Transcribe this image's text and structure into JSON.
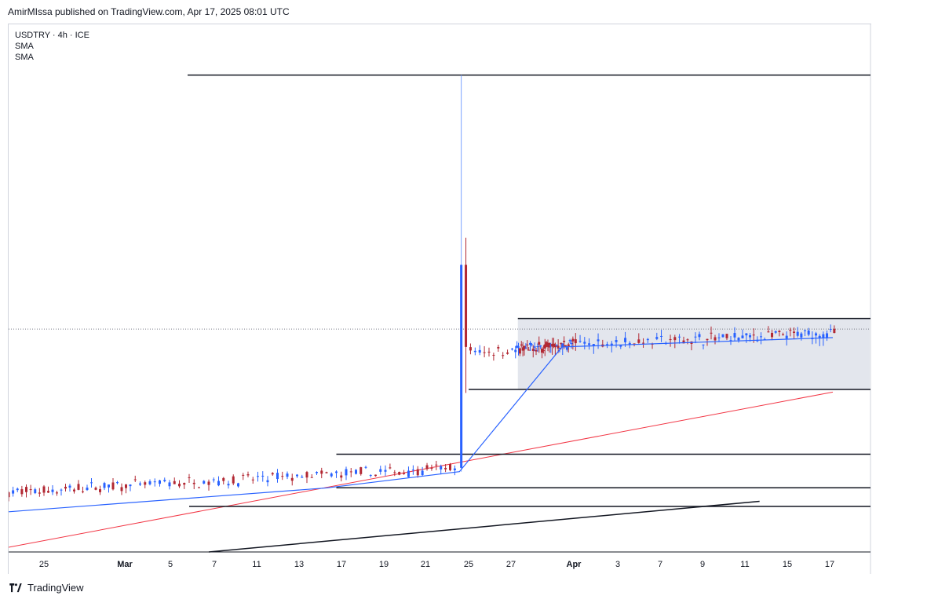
{
  "header": {
    "text": "AmirMIssa published on TradingView.com, Apr 17, 2025 08:01 UTC"
  },
  "legend": {
    "symbol": "USDTRY · 4h · ICE",
    "ind1": "SMA",
    "ind2": "SMA"
  },
  "footer": {
    "brand": "TradingView"
  },
  "colors": {
    "up": "#2962ff",
    "down": "#b22833",
    "sma_fast": "#2962ff",
    "sma_slow": "#f23645",
    "trend": "#131722",
    "zone": "#e0e3eb"
  },
  "chart_data": {
    "type": "candlestick",
    "symbol": "USDTRY",
    "timeframe": "4h",
    "ylim": [
      35.84,
      41.5
    ],
    "y_ticks": [
      "41.500000",
      "40.500000",
      "40.000000",
      "39.600000",
      "39.200000",
      "38.800000",
      "38.400000",
      "38.000000",
      "37.600000",
      "37.300000",
      "37.000000",
      "36.700000",
      "36.100000",
      "35.840000"
    ],
    "x_ticks": [
      "25",
      "Mar",
      "5",
      "7",
      "11",
      "13",
      "17",
      "19",
      "21",
      "25",
      "27",
      "Apr",
      "3",
      "7",
      "9",
      "11",
      "15",
      "17"
    ],
    "levels": [
      "41.016904",
      "38.252839",
      "38.140600",
      "37.488059",
      "36.798492",
      "36.451606",
      "36.256115"
    ],
    "last_price": "38.140600",
    "range_zone": {
      "top": 38.252839,
      "bottom": 37.488059
    },
    "phases": [
      {
        "period": "Feb 23 – Mar 19",
        "trend": "gradual rise",
        "from": 36.4,
        "to": 36.66
      },
      {
        "period": "Mar 19",
        "event": "spike",
        "high": 41.016904,
        "low": 36.66
      },
      {
        "period": "Mar 20 – Apr 17",
        "trend": "sideways range",
        "low": 37.488059,
        "high": 38.252839,
        "last": 38.1406
      }
    ],
    "sma_fast": [
      {
        "x": "Feb 23",
        "y": 36.2
      },
      {
        "x": "Mar 12",
        "y": 36.45
      },
      {
        "x": "Mar 19",
        "y": 36.62
      },
      {
        "x": "Mar 30",
        "y": 37.95
      },
      {
        "x": "Apr 17",
        "y": 38.05
      }
    ],
    "sma_slow": [
      {
        "x": "Feb 23",
        "y": 35.88
      },
      {
        "x": "Apr 17",
        "y": 37.46
      }
    ],
    "trendline": [
      {
        "x": "Mar 6",
        "y": 35.84
      },
      {
        "x": "Apr 12",
        "y": 36.31
      }
    ]
  }
}
